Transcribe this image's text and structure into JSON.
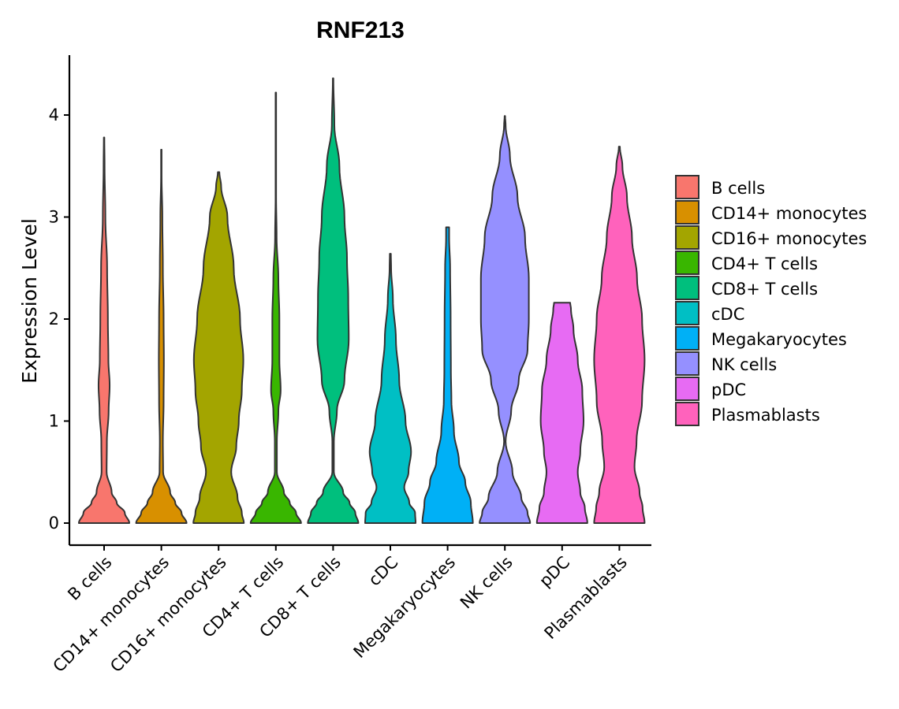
{
  "chart_data": {
    "type": "violin",
    "title": "RNF213",
    "xlabel": "",
    "ylabel": "Expression Level",
    "ylim": [
      -0.2,
      4.6
    ],
    "yticks": [
      0,
      1,
      2,
      3,
      4
    ],
    "ytick_labels": [
      "0",
      "1",
      "2",
      "3",
      "4"
    ],
    "legend_position": "right",
    "categories": [
      "B cells",
      "CD14+ monocytes",
      "CD16+ monocytes",
      "CD4+ T cells",
      "CD8+ T cells",
      "cDC",
      "Megakaryocytes",
      "NK cells",
      "pDC",
      "Plasmablasts"
    ],
    "colors": [
      "#F8766D",
      "#D89000",
      "#A3A500",
      "#39B600",
      "#00BF7D",
      "#00BFC4",
      "#00B0F6",
      "#9590FF",
      "#E76BF3",
      "#FF62BC"
    ],
    "series": [
      {
        "name": "B cells",
        "max": 3.78,
        "profile": [
          [
            0,
            1
          ],
          [
            0.1,
            0.82
          ],
          [
            0.2,
            0.5
          ],
          [
            0.3,
            0.3
          ],
          [
            0.5,
            0.1
          ],
          [
            0.8,
            0.11
          ],
          [
            1.1,
            0.18
          ],
          [
            1.35,
            0.22
          ],
          [
            1.6,
            0.17
          ],
          [
            2.0,
            0.15
          ],
          [
            2.5,
            0.12
          ],
          [
            3.0,
            0.05
          ],
          [
            3.5,
            0.02
          ],
          [
            3.78,
            0.01
          ]
        ]
      },
      {
        "name": "CD14+ monocytes",
        "max": 3.66,
        "profile": [
          [
            0,
            1
          ],
          [
            0.1,
            0.8
          ],
          [
            0.2,
            0.55
          ],
          [
            0.3,
            0.35
          ],
          [
            0.5,
            0.07
          ],
          [
            0.8,
            0.06
          ],
          [
            1.2,
            0.09
          ],
          [
            1.6,
            0.1
          ],
          [
            2.0,
            0.09
          ],
          [
            2.5,
            0.06
          ],
          [
            3.0,
            0.04
          ],
          [
            3.4,
            0.01
          ],
          [
            3.66,
            0.01
          ]
        ]
      },
      {
        "name": "CD16+ monocytes",
        "max": 3.44,
        "profile": [
          [
            0,
            1
          ],
          [
            0.1,
            0.92
          ],
          [
            0.25,
            0.75
          ],
          [
            0.5,
            0.5
          ],
          [
            0.75,
            0.7
          ],
          [
            1.0,
            0.8
          ],
          [
            1.3,
            0.92
          ],
          [
            1.6,
            0.98
          ],
          [
            2.0,
            0.85
          ],
          [
            2.5,
            0.6
          ],
          [
            3.0,
            0.35
          ],
          [
            3.3,
            0.1
          ],
          [
            3.44,
            0.03
          ]
        ]
      },
      {
        "name": "CD4+ T cells",
        "max": 4.22,
        "profile": [
          [
            0,
            1
          ],
          [
            0.1,
            0.8
          ],
          [
            0.2,
            0.55
          ],
          [
            0.3,
            0.32
          ],
          [
            0.5,
            0.04
          ],
          [
            0.8,
            0.04
          ],
          [
            1.1,
            0.1
          ],
          [
            1.3,
            0.19
          ],
          [
            1.6,
            0.14
          ],
          [
            2.0,
            0.14
          ],
          [
            2.4,
            0.1
          ],
          [
            2.8,
            0.03
          ],
          [
            3.2,
            0.01
          ],
          [
            4.22,
            0.01
          ]
        ]
      },
      {
        "name": "CD8+ T cells",
        "max": 4.36,
        "profile": [
          [
            0,
            1
          ],
          [
            0.1,
            0.88
          ],
          [
            0.2,
            0.65
          ],
          [
            0.3,
            0.4
          ],
          [
            0.5,
            0.03
          ],
          [
            0.8,
            0.03
          ],
          [
            1.1,
            0.15
          ],
          [
            1.4,
            0.45
          ],
          [
            1.8,
            0.62
          ],
          [
            2.2,
            0.6
          ],
          [
            2.6,
            0.55
          ],
          [
            3.0,
            0.45
          ],
          [
            3.5,
            0.25
          ],
          [
            3.9,
            0.05
          ],
          [
            4.36,
            0.01
          ]
        ]
      },
      {
        "name": "cDC",
        "max": 2.64,
        "profile": [
          [
            0,
            1
          ],
          [
            0.1,
            0.98
          ],
          [
            0.2,
            0.75
          ],
          [
            0.35,
            0.55
          ],
          [
            0.5,
            0.72
          ],
          [
            0.7,
            0.82
          ],
          [
            1.0,
            0.6
          ],
          [
            1.4,
            0.35
          ],
          [
            1.8,
            0.22
          ],
          [
            2.2,
            0.1
          ],
          [
            2.5,
            0.03
          ],
          [
            2.64,
            0.02
          ]
        ]
      },
      {
        "name": "Megakaryocytes",
        "max": 2.9,
        "profile": [
          [
            0,
            1
          ],
          [
            0.2,
            0.92
          ],
          [
            0.4,
            0.7
          ],
          [
            0.6,
            0.45
          ],
          [
            0.9,
            0.25
          ],
          [
            1.2,
            0.15
          ],
          [
            1.5,
            0.13
          ],
          [
            2.0,
            0.12
          ],
          [
            2.5,
            0.1
          ],
          [
            2.8,
            0.06
          ],
          [
            2.9,
            0.06
          ]
        ]
      },
      {
        "name": "NK cells",
        "max": 3.99,
        "profile": [
          [
            0,
            1
          ],
          [
            0.1,
            0.9
          ],
          [
            0.25,
            0.65
          ],
          [
            0.5,
            0.3
          ],
          [
            0.8,
            0.03
          ],
          [
            1.1,
            0.25
          ],
          [
            1.4,
            0.55
          ],
          [
            1.7,
            0.9
          ],
          [
            2.0,
            0.95
          ],
          [
            2.4,
            0.95
          ],
          [
            2.8,
            0.8
          ],
          [
            3.2,
            0.5
          ],
          [
            3.6,
            0.2
          ],
          [
            3.9,
            0.03
          ],
          [
            3.99,
            0.01
          ]
        ]
      },
      {
        "name": "pDC",
        "max": 2.16,
        "profile": [
          [
            0,
            1
          ],
          [
            0.15,
            0.9
          ],
          [
            0.3,
            0.72
          ],
          [
            0.5,
            0.62
          ],
          [
            0.7,
            0.72
          ],
          [
            1.0,
            0.85
          ],
          [
            1.3,
            0.8
          ],
          [
            1.6,
            0.62
          ],
          [
            1.9,
            0.45
          ],
          [
            2.1,
            0.35
          ],
          [
            2.16,
            0.32
          ]
        ]
      },
      {
        "name": "Plasmablasts",
        "max": 3.69,
        "profile": [
          [
            0,
            1
          ],
          [
            0.15,
            0.92
          ],
          [
            0.3,
            0.8
          ],
          [
            0.55,
            0.6
          ],
          [
            0.8,
            0.68
          ],
          [
            1.2,
            0.9
          ],
          [
            1.6,
            1.0
          ],
          [
            2.0,
            0.9
          ],
          [
            2.4,
            0.7
          ],
          [
            2.8,
            0.5
          ],
          [
            3.2,
            0.3
          ],
          [
            3.5,
            0.12
          ],
          [
            3.69,
            0.02
          ]
        ]
      }
    ]
  }
}
